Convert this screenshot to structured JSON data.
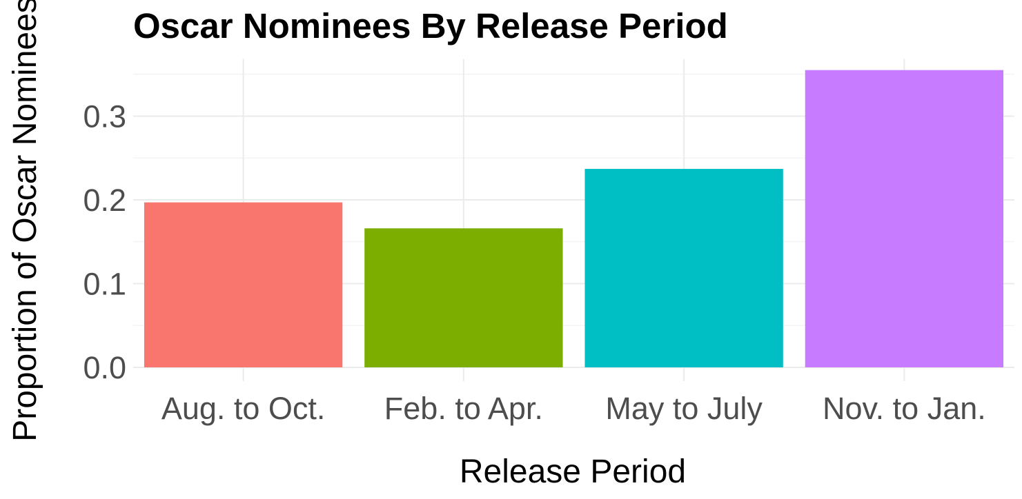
{
  "chart_data": {
    "type": "bar",
    "title": "Oscar Nominees By Release Period",
    "xlabel": "Release Period",
    "ylabel": "Proportion of Oscar Nominees",
    "categories": [
      "Aug. to Oct.",
      "Feb. to Apr.",
      "May to July",
      "Nov. to Jan."
    ],
    "values": [
      0.197,
      0.166,
      0.237,
      0.355
    ],
    "colors": [
      "#F8766D",
      "#7CAE00",
      "#00BFC4",
      "#C77CFF"
    ],
    "y_ticks": [
      "0.0",
      "0.1",
      "0.2",
      "0.3"
    ],
    "ylim": [
      0,
      0.36
    ],
    "grid": true,
    "legend": "none"
  }
}
